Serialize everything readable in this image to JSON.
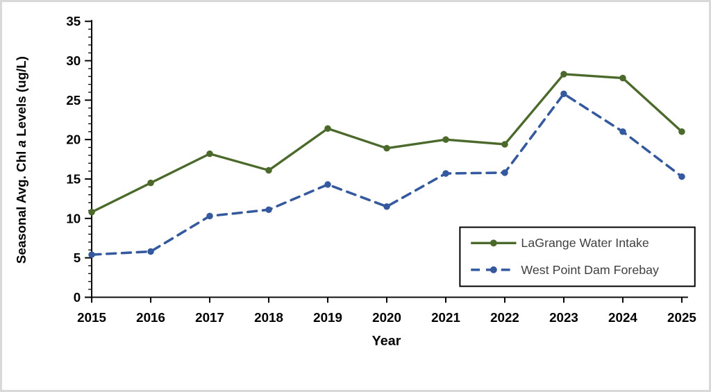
{
  "figure": {
    "background_color": "#ffffff",
    "frame_border_color": "#d9d9d9"
  },
  "chart_data": {
    "type": "line",
    "title": "",
    "xlabel": "Year",
    "ylabel": "Seasonal Avg. Chl a Levels (ug/L)",
    "ylabel_parts": {
      "prefix": "Seasonal Avg. Chl ",
      "italic": "a",
      "suffix": " Levels (ug/L)"
    },
    "categories": [
      "2015",
      "2016",
      "2017",
      "2018",
      "2019",
      "2020",
      "2021",
      "2022",
      "2023",
      "2024",
      "2025"
    ],
    "ylim": [
      0,
      35
    ],
    "yticks": [
      0,
      5,
      10,
      15,
      20,
      25,
      30,
      35
    ],
    "ytick_step": 5,
    "yminor_step": 1,
    "grid": false,
    "axis_color": "#000000",
    "legend": {
      "position": "inside-bottom-right",
      "border_color": "#000000",
      "fill_color": "#ffffff",
      "text_color": "#404040"
    },
    "series": [
      {
        "name": "LaGrange Water Intake",
        "color": "#4b692b",
        "line_style": "solid",
        "marker": "circle",
        "values": [
          10.8,
          14.5,
          18.2,
          16.1,
          21.4,
          18.9,
          20.0,
          19.4,
          28.3,
          27.8,
          21.0
        ]
      },
      {
        "name": "West Point Dam Forebay",
        "color": "#35599e",
        "line_style": "dashed",
        "marker": "circle",
        "values": [
          5.4,
          5.8,
          10.3,
          11.1,
          14.3,
          11.5,
          15.7,
          15.8,
          25.8,
          21.0,
          15.3
        ]
      }
    ]
  }
}
